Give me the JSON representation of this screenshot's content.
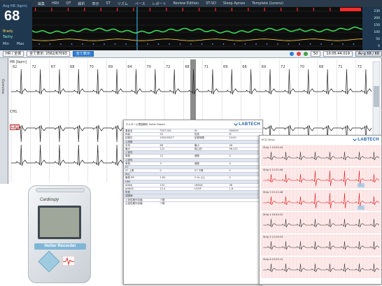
{
  "menubar": {
    "items": [
      "ファイル",
      "編集",
      "HRV",
      "QT",
      "解析",
      "表示",
      "ST",
      "リズム",
      "ペース",
      "レポート",
      "Review Edition",
      "ST-SD",
      "Sleep Apnea",
      "Template (Lorenz)"
    ]
  },
  "hr_panel": {
    "label": "Avg HR (bpm)",
    "value": "68",
    "side_a": "Brady",
    "side_b": "Tachy",
    "min_label": "Min",
    "max_label": "Max"
  },
  "trend_axis": {
    "ticks": [
      "230",
      "200",
      "150",
      "100",
      "50",
      "0"
    ]
  },
  "toolbar": {
    "field_a": "HR / 全体",
    "field_b": "全て表示: 2562/67093",
    "button_show": "全て表示",
    "time": "10:05:44.019",
    "avg_label": "Av-g 68 / 68",
    "zoom": "50"
  },
  "ecg": {
    "hr_unit": "HR [bpm]",
    "ch1_label": "CH1",
    "ch2_label": "CH2",
    "side_label": "Overview",
    "beat_values": [
      "62",
      "72",
      "67",
      "68",
      "70",
      "69",
      "64",
      "70",
      "72",
      "68",
      "71",
      "69",
      "66",
      "69",
      "72",
      "70",
      "68",
      "71",
      "73"
    ]
  },
  "report_doc": {
    "header_left": "ホルター心電図解析 Holter Report",
    "logo": "LABTECH",
    "rows": [
      [
        "患者名",
        "TEST 001",
        "ID",
        "000045"
      ],
      [
        "年齢",
        "45",
        "性別",
        "M"
      ],
      [
        "記録日",
        "2020/05/27",
        "記録時間",
        "24:00"
      ],
      [
        "心拍数",
        "",
        "",
        ""
      ],
      [
        "平均",
        "68",
        "最小",
        "48"
      ],
      [
        "最大",
        "122",
        "総心拍",
        "98,412"
      ],
      [
        "上室性",
        "",
        "",
        ""
      ],
      [
        "単発",
        "12",
        "連発",
        "0"
      ],
      [
        "心室性",
        "",
        "",
        ""
      ],
      [
        "単発",
        "3",
        "連発",
        "0"
      ],
      [
        "ST",
        "",
        "",
        ""
      ],
      [
        "ST 上昇",
        "0",
        "ST 下降",
        "0"
      ],
      [
        "休止",
        "",
        "",
        ""
      ],
      [
        "最長 RR",
        "1.62",
        "2.0s 以上",
        "0"
      ],
      [
        "HRV",
        "",
        "",
        ""
      ],
      [
        "SDNN",
        "132",
        "rMSSD",
        "38"
      ],
      [
        "pNN50",
        "12.4",
        "LF/HF",
        "1.8"
      ],
      [
        "所見",
        "",
        "",
        ""
      ],
      [
        "洞調律",
        "",
        "",
        ""
      ],
      [
        "上室性期外収縮",
        "少数",
        "",
        ""
      ],
      [
        "心室性期外収縮",
        "少数",
        "",
        ""
      ]
    ]
  },
  "strip_doc": {
    "header_left": "ECG Strips",
    "logo": "LABTECH",
    "strip_titles": [
      "Strip 1 10:05:44",
      "Strip 2 12:31:06",
      "Strip 3 15:12:48",
      "Strip 4 18:44:20",
      "Strip 5 21:09:33",
      "Strip 6 23:55:12"
    ]
  },
  "device": {
    "brand": "Cardiospy",
    "plate": "Holter Recorder"
  },
  "colors": {
    "trend_bg": "#0d0d0d",
    "trend_hr": "#39d353",
    "trend_event": "#ff2a2a",
    "ecg_trace": "#222222",
    "strip_grid": "#f4c3c3",
    "strip_trace_alert": "#e01010"
  }
}
